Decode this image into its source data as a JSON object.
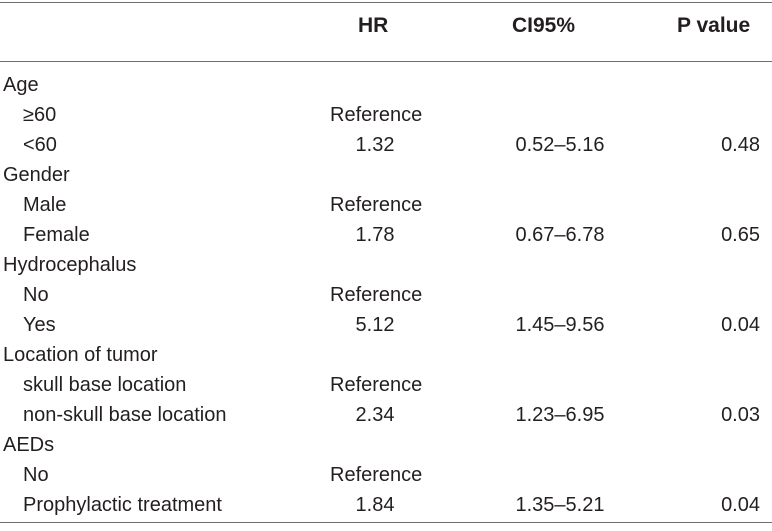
{
  "header": {
    "hr": "HR",
    "ci": "CI95%",
    "p": "P value"
  },
  "rows": [
    {
      "type": "group",
      "label": "Age",
      "hr": "",
      "ci": "",
      "p": ""
    },
    {
      "type": "sub",
      "label": "≥60",
      "hr": "Reference",
      "ci": "",
      "p": ""
    },
    {
      "type": "sub",
      "label": "<60",
      "hr": "1.32",
      "ci": "0.52–5.16",
      "p": "0.48"
    },
    {
      "type": "group",
      "label": "Gender",
      "hr": "",
      "ci": "",
      "p": ""
    },
    {
      "type": "sub",
      "label": "Male",
      "hr": "Reference",
      "ci": "",
      "p": ""
    },
    {
      "type": "sub",
      "label": "Female",
      "hr": "1.78",
      "ci": "0.67–6.78",
      "p": "0.65"
    },
    {
      "type": "group",
      "label": "Hydrocephalus",
      "hr": "",
      "ci": "",
      "p": ""
    },
    {
      "type": "sub",
      "label": "No",
      "hr": "Reference",
      "ci": "",
      "p": ""
    },
    {
      "type": "sub",
      "label": "Yes",
      "hr": "5.12",
      "ci": "1.45–9.56",
      "p": "0.04"
    },
    {
      "type": "group",
      "label": "Location of tumor",
      "hr": "",
      "ci": "",
      "p": ""
    },
    {
      "type": "sub",
      "label": "skull base location",
      "hr": "Reference",
      "ci": "",
      "p": ""
    },
    {
      "type": "sub",
      "label": "non-skull base location",
      "hr": "2.34",
      "ci": "1.23–6.95",
      "p": "0.03"
    },
    {
      "type": "group",
      "label": "AEDs",
      "hr": "",
      "ci": "",
      "p": ""
    },
    {
      "type": "sub",
      "label": "No",
      "hr": "Reference",
      "ci": "",
      "p": ""
    },
    {
      "type": "sub",
      "label": "Prophylactic treatment",
      "hr": "1.84",
      "ci": "1.35–5.21",
      "p": "0.04"
    }
  ]
}
